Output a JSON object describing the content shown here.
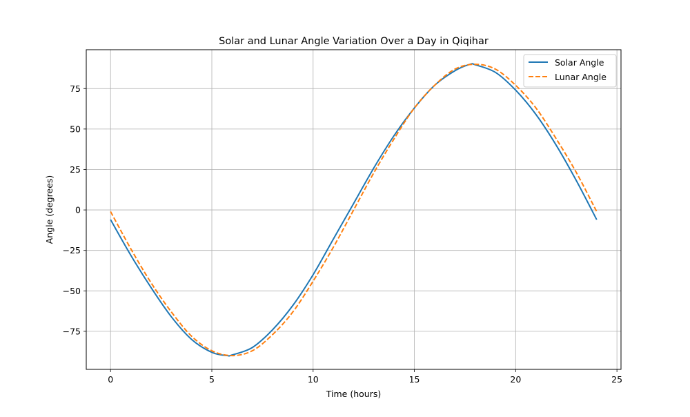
{
  "chart_data": {
    "type": "line",
    "title": "Solar and Lunar Angle Variation Over a Day in Qiqihar",
    "xlabel": "Time (hours)",
    "ylabel": "Angle (degrees)",
    "xlim": [
      -1.2,
      25.2
    ],
    "ylim": [
      -98.5,
      99
    ],
    "xticks": [
      0,
      5,
      10,
      15,
      20,
      25
    ],
    "yticks": [
      -75,
      -50,
      -25,
      0,
      25,
      50,
      75
    ],
    "ytick_labels": [
      "−75",
      "−50",
      "−25",
      "0",
      "25",
      "50",
      "75"
    ],
    "grid": true,
    "legend_position": "upper right",
    "series": [
      {
        "name": "Solar Angle",
        "color": "#1f77b4",
        "style": "solid",
        "x": [
          0,
          1,
          2,
          3,
          4,
          5,
          5.75,
          6,
          7,
          8,
          9,
          10,
          11,
          12,
          13,
          14,
          15,
          16,
          17,
          17.75,
          18,
          19,
          20,
          21,
          22,
          23,
          24
        ],
        "y": [
          -6,
          -28,
          -48,
          -66,
          -80,
          -88,
          -90,
          -89.6,
          -85,
          -74,
          -59,
          -40,
          -18,
          4,
          26,
          46,
          63,
          77,
          86,
          90,
          89.7,
          85,
          74,
          59,
          40,
          18,
          -6
        ]
      },
      {
        "name": "Lunar Angle",
        "color": "#ff7f0e",
        "style": "dashed",
        "x": [
          0,
          1,
          2,
          3,
          4,
          5,
          6,
          7,
          8,
          9,
          10,
          11,
          12,
          13,
          14,
          15,
          16,
          17,
          18,
          19,
          20,
          21,
          22,
          23,
          24
        ],
        "y": [
          -1,
          -24,
          -45,
          -63,
          -78,
          -87,
          -90,
          -87,
          -77,
          -63,
          -44,
          -23,
          0,
          23,
          44,
          63,
          77,
          87,
          90,
          87,
          77,
          63,
          44,
          23,
          -1
        ]
      }
    ]
  }
}
